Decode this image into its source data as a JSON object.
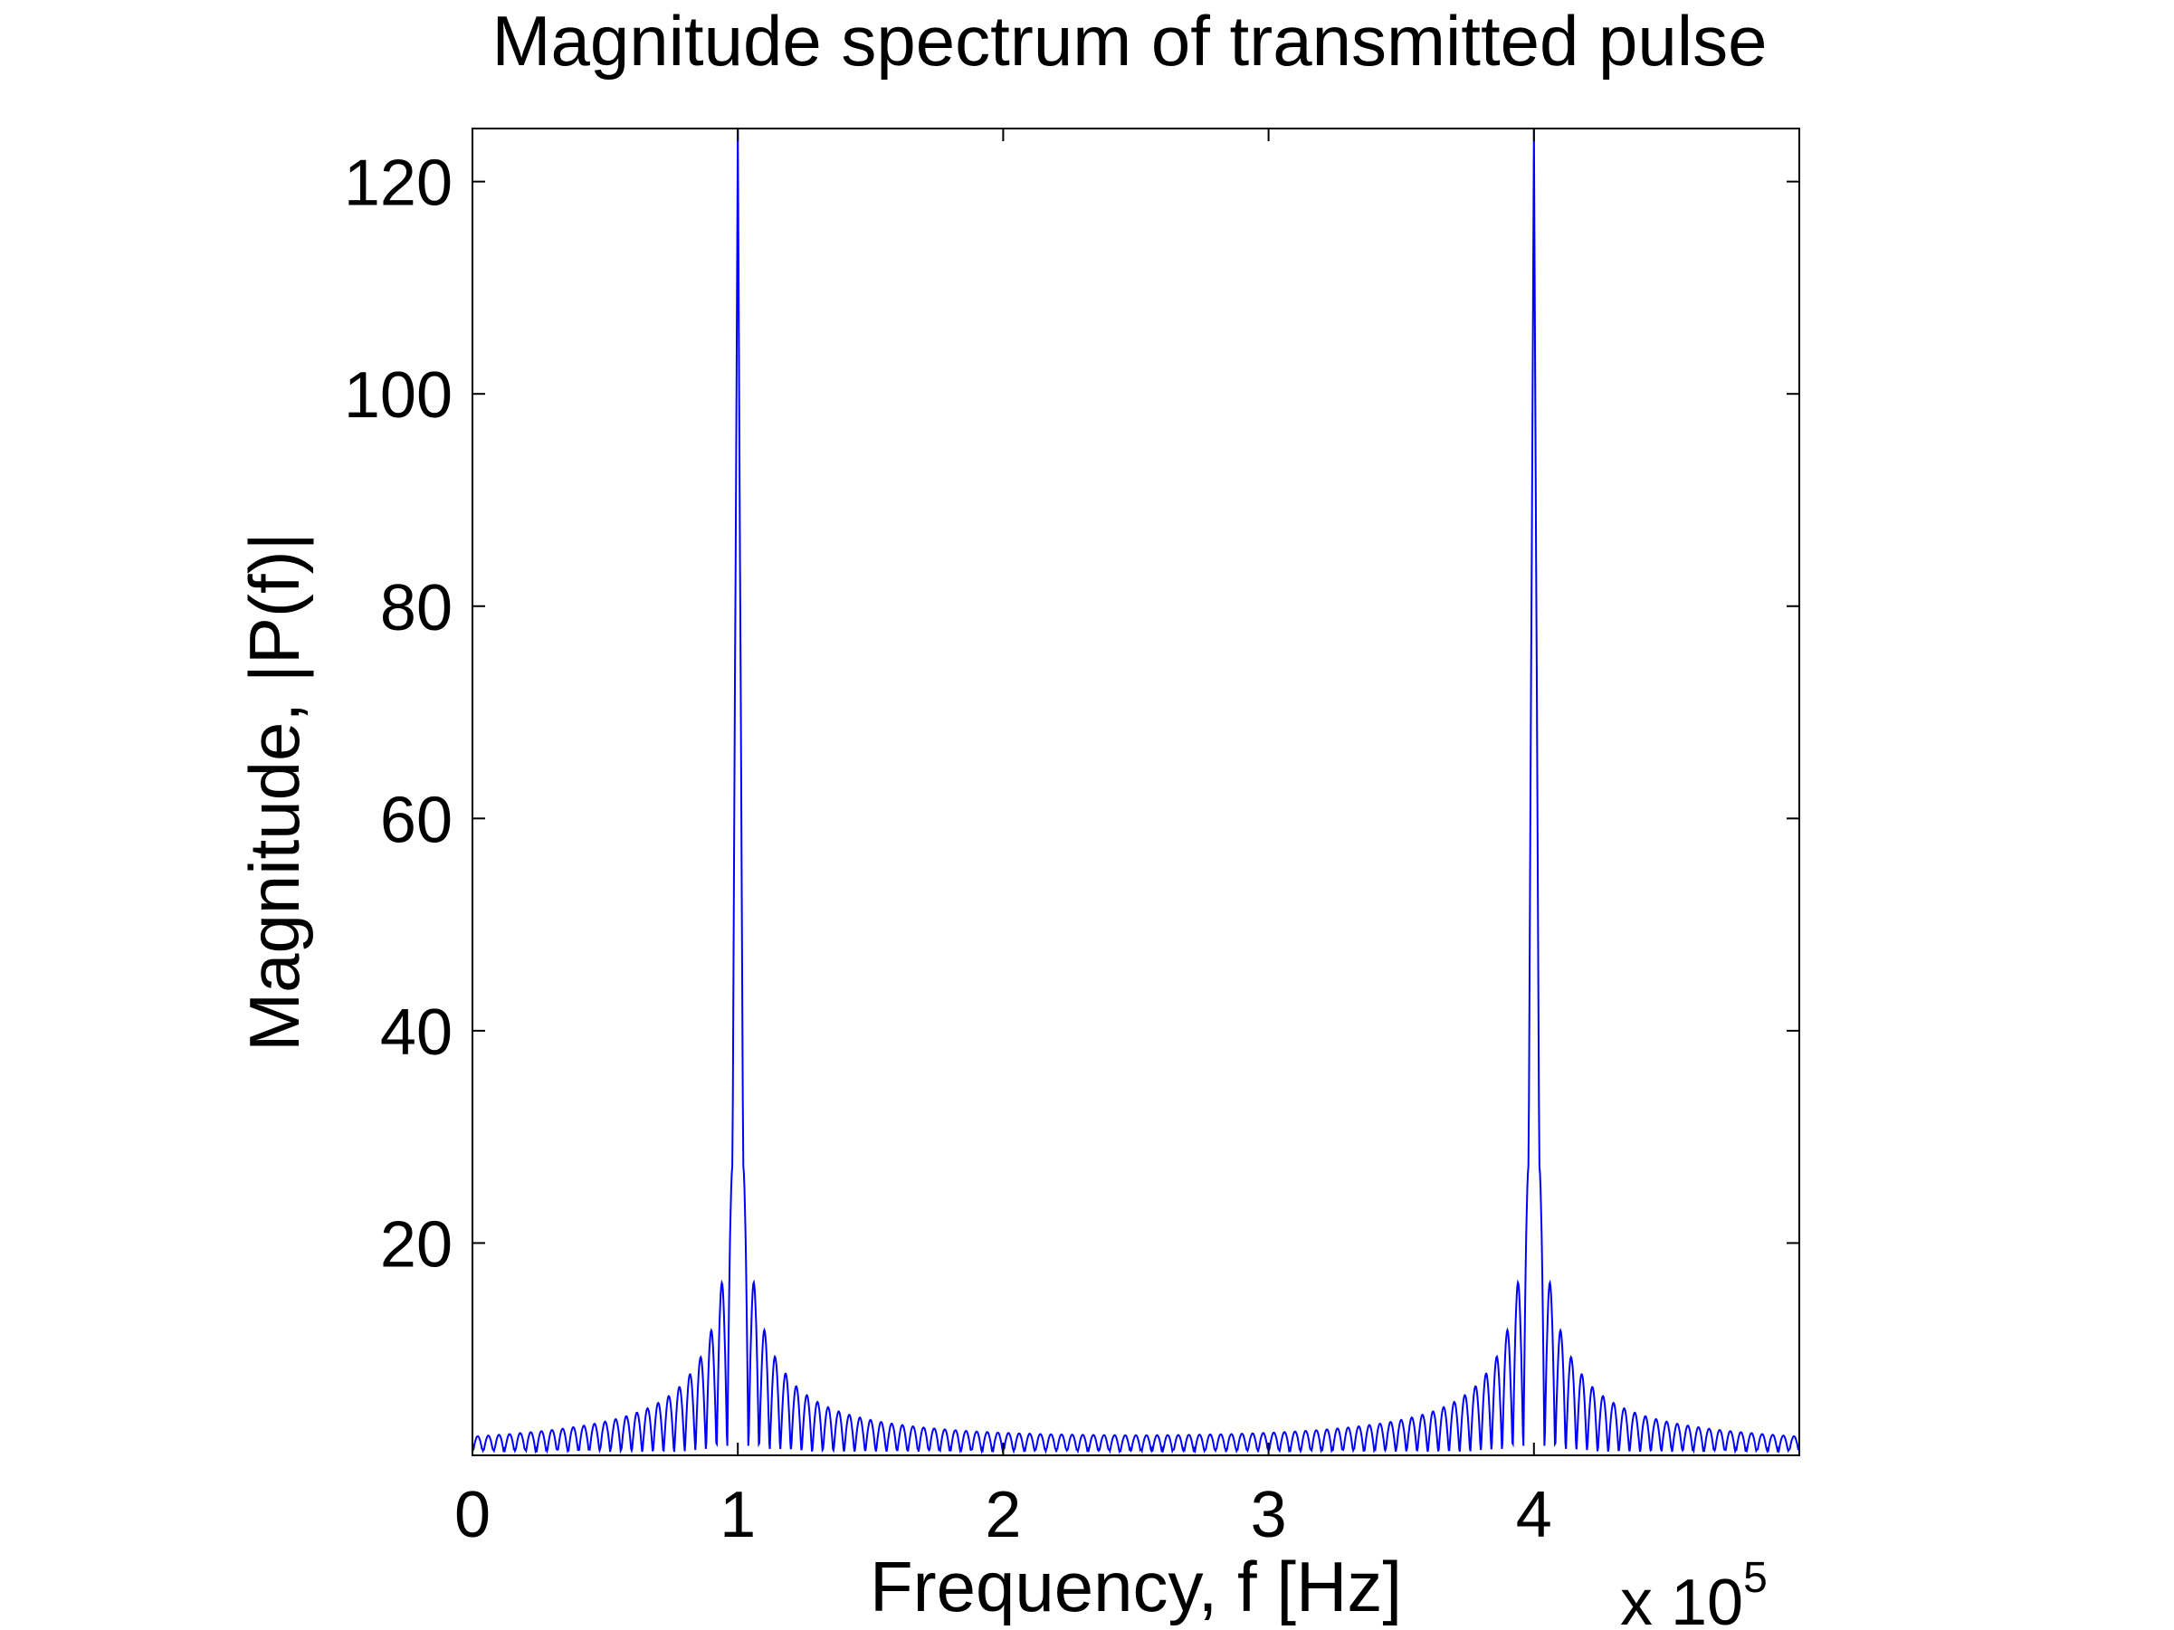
{
  "chart_data": {
    "type": "line",
    "title": "Magnitude spectrum of transmitted pulse",
    "xlabel": "Frequency, f [Hz]",
    "ylabel": "Magnitude, |P(f)|",
    "x_exponent": {
      "base": "x 10",
      "power": "5"
    },
    "xlim": [
      0,
      5
    ],
    "ylim": [
      0,
      125
    ],
    "xticks": [
      0,
      1,
      2,
      3,
      4
    ],
    "xtick_labels": [
      "0",
      "1",
      "2",
      "3",
      "4"
    ],
    "yticks": [
      20,
      40,
      60,
      80,
      100,
      120
    ],
    "ytick_labels": [
      "20",
      "40",
      "60",
      "80",
      "100",
      "120"
    ],
    "grid": false,
    "line_color": "#0000ff",
    "peaks": [
      {
        "f": 1.0,
        "magnitude": 125
      },
      {
        "f": 4.0,
        "magnitude": 125
      }
    ],
    "sidelobe_levels": [
      26.8,
      15.8,
      11.3,
      8.8,
      7.2
    ],
    "sidelobe_spacing": 0.04,
    "floor_magnitude": 0.6
  }
}
